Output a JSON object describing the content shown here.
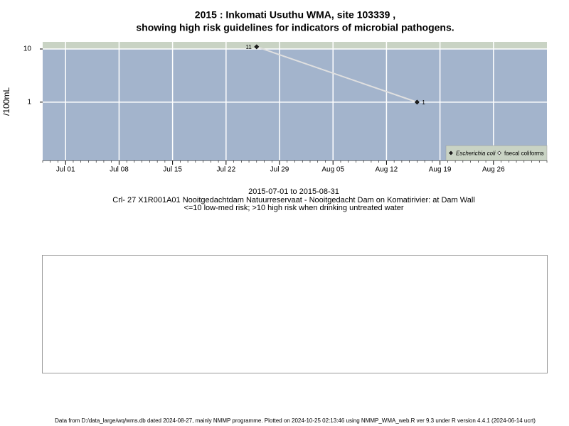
{
  "chart_data": {
    "type": "line",
    "title": [
      "2015 : Inkomati Usuthu WMA, site 103339 ,",
      "showing high risk guidelines for indicators of microbial pathogens."
    ],
    "ylabel": "/100mL",
    "subtitle": [
      "2015-07-01 to 2015-08-31",
      "Crl- 27 X1R001A01 Nooitgedachtdam Natuurreservaat - Nooitgedacht Dam on Komatirivier: at Dam Wall",
      "<=10 low-med risk; >10 high risk when drinking untreated water"
    ],
    "footer": "Data from D:/data_large/wq/wms.db dated 2024-08-27, mainly NMMP programme. Plotted on 2024-10-25 02:13:46 using NMMP_WMA_web.R ver 9.3 under R version 4.4.1 (2024-06-14 ucrt)",
    "x": [
      "2015-07-26",
      "2015-08-16"
    ],
    "series": [
      {
        "name": "Escherichia coli",
        "color": "#222222",
        "values": [
          11,
          1
        ]
      },
      {
        "name": "faecal coliforms",
        "color": "#ffffff",
        "values": [
          null,
          null
        ]
      }
    ],
    "threshold": 10,
    "log_y": true,
    "ylim": [
      0.08,
      13.6
    ],
    "yticks": [
      1,
      10
    ],
    "xlim": [
      "2015-06-28",
      "2015-09-02"
    ],
    "xticks": [
      {
        "value": "2015-07-01",
        "label": "Jul 01"
      },
      {
        "value": "2015-07-08",
        "label": "Jul 08"
      },
      {
        "value": "2015-07-15",
        "label": "Jul 15"
      },
      {
        "value": "2015-07-22",
        "label": "Jul 22"
      },
      {
        "value": "2015-07-29",
        "label": "Jul 29"
      },
      {
        "value": "2015-08-05",
        "label": "Aug 05"
      },
      {
        "value": "2015-08-12",
        "label": "Aug 12"
      },
      {
        "value": "2015-08-19",
        "label": "Aug 19"
      },
      {
        "value": "2015-08-26",
        "label": "Aug 26"
      }
    ],
    "grid": true,
    "legend": "bottom-right"
  }
}
